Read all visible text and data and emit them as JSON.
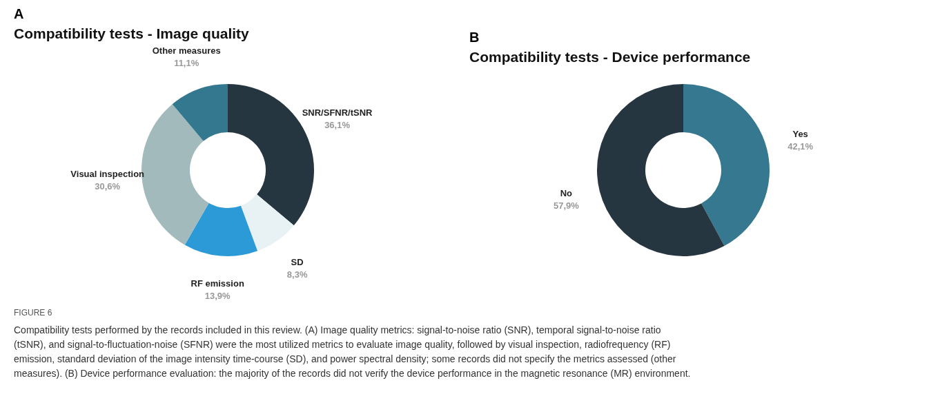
{
  "chart_data": [
    {
      "type": "donut",
      "title": "Compatibility tests - Image quality",
      "annotations": [
        "A",
        "FIGURE 6",
        "Compatibility tests performed by the records included in this review. (A) Image quality metrics: signal-to-noise ratio (SNR), temporal signal-to-noise ratio (tSNR), and signal-to-fluctuation-noise (SFNR) were the most utilized metrics to evaluate image quality, followed by visual inspection, radiofrequency (RF) emission, standard deviation of the image intensity time-course (SD), and power spectral density; some records did not specify the metrics assessed (other measures). (B) Device performance evaluation: the majority of the records did not verify the device performance in the magnetic resonance (MR) environment."
      ],
      "categories": [
        "SNR/SFNR/tSNR",
        "SD",
        "RF emission",
        "Visual inspection",
        "Other measures"
      ],
      "values": [
        36.1,
        8.3,
        13.9,
        30.6,
        11.1
      ],
      "value_labels": [
        "36,1%",
        "8,3%",
        "13,9%",
        "30,6%",
        "11,1%"
      ],
      "colors": [
        "#263640",
        "#e8f1f4",
        "#2d9ad8",
        "#a3babd",
        "#33788f"
      ]
    },
    {
      "type": "donut",
      "title": "Compatibility tests - Device performance",
      "annotations": [
        "B"
      ],
      "categories": [
        "Yes",
        "No"
      ],
      "values": [
        42.1,
        57.9
      ],
      "value_labels": [
        "42,1%",
        "57,9%"
      ],
      "colors": [
        "#35788f",
        "#263640"
      ]
    }
  ]
}
